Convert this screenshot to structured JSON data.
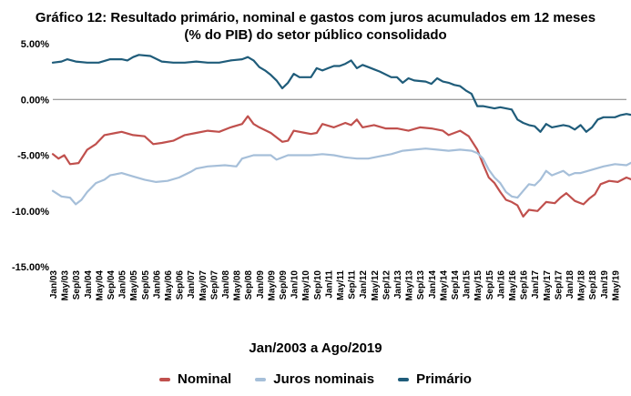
{
  "chart_data": {
    "type": "line",
    "title": "Gráfico 12: Resultado primário, nominal e gastos com juros acumulados em 12 meses",
    "subtitle": "(% do PIB) do setor público consolidado",
    "xlabel": "Jan/2003 a Ago/2019",
    "ylabel": "",
    "y_ticks": [
      "5.00%",
      "0.00%",
      "-5.00%",
      "-10.00%",
      "-15.00%"
    ],
    "y_tick_values": [
      5,
      0,
      -5,
      -10,
      -15
    ],
    "ylim": [
      -15,
      5
    ],
    "x_tick_labels": [
      "Jan/03",
      "May/03",
      "Sep/03",
      "Jan/04",
      "May/04",
      "Sep/04",
      "Jan/05",
      "May/05",
      "Sep/05",
      "Jan/06",
      "May/06",
      "Sep/06",
      "Jan/07",
      "May/07",
      "Sep/07",
      "Jan/08",
      "May/08",
      "Sep/08",
      "Jan/09",
      "May/09",
      "Sep/09",
      "Jan/10",
      "May/10",
      "Sep/10",
      "Jan/11",
      "May/11",
      "Sep/11",
      "Jan/12",
      "May/12",
      "Sep/12",
      "Jan/13",
      "May/13",
      "Sep/13",
      "Jan/14",
      "May/14",
      "Sep/14",
      "Jan/15",
      "May/15",
      "Sep/15",
      "Jan/16",
      "May/16",
      "Sep/16",
      "Jan/17",
      "May/17",
      "Sep/17",
      "Jan/18",
      "May/18",
      "Sep/18",
      "Jan/19",
      "May/19"
    ],
    "grid": false,
    "legend_position": "bottom",
    "series": [
      {
        "name": "Nominal",
        "color": "#c0504d",
        "knots": [
          [
            0,
            -4.9
          ],
          [
            2,
            -5.3
          ],
          [
            4,
            -5.0
          ],
          [
            6,
            -5.8
          ],
          [
            9,
            -5.7
          ],
          [
            12,
            -4.5
          ],
          [
            15,
            -4.0
          ],
          [
            18,
            -3.2
          ],
          [
            22,
            -3.0
          ],
          [
            24,
            -2.9
          ],
          [
            28,
            -3.2
          ],
          [
            32,
            -3.3
          ],
          [
            35,
            -4.0
          ],
          [
            38,
            -3.9
          ],
          [
            42,
            -3.7
          ],
          [
            46,
            -3.2
          ],
          [
            50,
            -3.0
          ],
          [
            54,
            -2.8
          ],
          [
            58,
            -2.9
          ],
          [
            62,
            -2.5
          ],
          [
            66,
            -2.2
          ],
          [
            68,
            -1.5
          ],
          [
            70,
            -2.2
          ],
          [
            72,
            -2.5
          ],
          [
            76,
            -3.0
          ],
          [
            80,
            -3.8
          ],
          [
            82,
            -3.7
          ],
          [
            84,
            -2.8
          ],
          [
            88,
            -3.0
          ],
          [
            90,
            -3.1
          ],
          [
            92,
            -3.0
          ],
          [
            94,
            -2.2
          ],
          [
            98,
            -2.5
          ],
          [
            102,
            -2.1
          ],
          [
            104,
            -2.3
          ],
          [
            106,
            -1.8
          ],
          [
            108,
            -2.5
          ],
          [
            112,
            -2.3
          ],
          [
            116,
            -2.6
          ],
          [
            120,
            -2.6
          ],
          [
            124,
            -2.8
          ],
          [
            128,
            -2.5
          ],
          [
            132,
            -2.6
          ],
          [
            136,
            -2.8
          ],
          [
            138,
            -3.2
          ],
          [
            142,
            -2.8
          ],
          [
            145,
            -3.3
          ],
          [
            148,
            -4.5
          ],
          [
            150,
            -5.8
          ],
          [
            152,
            -7.0
          ],
          [
            154,
            -7.5
          ],
          [
            156,
            -8.3
          ],
          [
            158,
            -9.0
          ],
          [
            160,
            -9.2
          ],
          [
            162,
            -9.5
          ],
          [
            164,
            -10.5
          ],
          [
            166,
            -9.9
          ],
          [
            169,
            -10.0
          ],
          [
            172,
            -9.2
          ],
          [
            175,
            -9.3
          ],
          [
            177,
            -8.8
          ],
          [
            179,
            -8.4
          ],
          [
            182,
            -9.1
          ],
          [
            185,
            -9.4
          ],
          [
            187,
            -8.9
          ],
          [
            189,
            -8.5
          ],
          [
            191,
            -7.6
          ],
          [
            194,
            -7.3
          ],
          [
            197,
            -7.4
          ],
          [
            200,
            -7.0
          ],
          [
            202,
            -7.2
          ],
          [
            205,
            -6.8
          ],
          [
            207,
            -7.0
          ],
          [
            210,
            -6.9
          ],
          [
            213,
            -6.8
          ],
          [
            215,
            -6.5
          ],
          [
            218,
            -6.3
          ],
          [
            220,
            -6.3
          ]
        ]
      },
      {
        "name": "Juros nominais",
        "color": "#a6bfd9",
        "knots": [
          [
            0,
            -8.2
          ],
          [
            3,
            -8.7
          ],
          [
            6,
            -8.8
          ],
          [
            8,
            -9.4
          ],
          [
            10,
            -9.0
          ],
          [
            12,
            -8.3
          ],
          [
            15,
            -7.5
          ],
          [
            18,
            -7.2
          ],
          [
            20,
            -6.8
          ],
          [
            24,
            -6.6
          ],
          [
            28,
            -6.9
          ],
          [
            32,
            -7.2
          ],
          [
            36,
            -7.4
          ],
          [
            40,
            -7.3
          ],
          [
            44,
            -7.0
          ],
          [
            48,
            -6.5
          ],
          [
            50,
            -6.2
          ],
          [
            54,
            -6.0
          ],
          [
            60,
            -5.9
          ],
          [
            64,
            -6.0
          ],
          [
            66,
            -5.3
          ],
          [
            70,
            -5.0
          ],
          [
            72,
            -5.0
          ],
          [
            76,
            -5.0
          ],
          [
            78,
            -5.4
          ],
          [
            82,
            -5.0
          ],
          [
            86,
            -5.0
          ],
          [
            90,
            -5.0
          ],
          [
            94,
            -4.9
          ],
          [
            98,
            -5.0
          ],
          [
            102,
            -5.2
          ],
          [
            106,
            -5.3
          ],
          [
            110,
            -5.3
          ],
          [
            114,
            -5.1
          ],
          [
            118,
            -4.9
          ],
          [
            122,
            -4.6
          ],
          [
            126,
            -4.5
          ],
          [
            130,
            -4.4
          ],
          [
            134,
            -4.5
          ],
          [
            138,
            -4.6
          ],
          [
            142,
            -4.5
          ],
          [
            146,
            -4.6
          ],
          [
            148,
            -4.8
          ],
          [
            150,
            -5.3
          ],
          [
            152,
            -6.3
          ],
          [
            154,
            -7.0
          ],
          [
            156,
            -7.5
          ],
          [
            158,
            -8.3
          ],
          [
            160,
            -8.7
          ],
          [
            162,
            -8.8
          ],
          [
            164,
            -8.2
          ],
          [
            166,
            -7.6
          ],
          [
            168,
            -7.7
          ],
          [
            170,
            -7.2
          ],
          [
            172,
            -6.4
          ],
          [
            174,
            -6.8
          ],
          [
            176,
            -6.6
          ],
          [
            178,
            -6.4
          ],
          [
            180,
            -6.8
          ],
          [
            182,
            -6.6
          ],
          [
            184,
            -6.6
          ],
          [
            188,
            -6.3
          ],
          [
            192,
            -6.0
          ],
          [
            196,
            -5.8
          ],
          [
            200,
            -5.9
          ],
          [
            203,
            -5.5
          ],
          [
            206,
            -5.6
          ],
          [
            209,
            -5.3
          ],
          [
            212,
            -5.4
          ],
          [
            214,
            -5.5
          ],
          [
            216,
            -5.0
          ],
          [
            220,
            -5.0
          ]
        ]
      },
      {
        "name": "Primário",
        "color": "#1f5c7a",
        "knots": [
          [
            0,
            3.3
          ],
          [
            3,
            3.4
          ],
          [
            5,
            3.6
          ],
          [
            8,
            3.4
          ],
          [
            12,
            3.3
          ],
          [
            16,
            3.3
          ],
          [
            20,
            3.6
          ],
          [
            24,
            3.6
          ],
          [
            26,
            3.5
          ],
          [
            28,
            3.8
          ],
          [
            30,
            4.0
          ],
          [
            34,
            3.9
          ],
          [
            38,
            3.4
          ],
          [
            42,
            3.3
          ],
          [
            46,
            3.3
          ],
          [
            50,
            3.4
          ],
          [
            54,
            3.3
          ],
          [
            58,
            3.3
          ],
          [
            62,
            3.5
          ],
          [
            66,
            3.6
          ],
          [
            68,
            3.8
          ],
          [
            70,
            3.5
          ],
          [
            72,
            2.9
          ],
          [
            74,
            2.6
          ],
          [
            76,
            2.2
          ],
          [
            78,
            1.7
          ],
          [
            80,
            1.0
          ],
          [
            82,
            1.5
          ],
          [
            84,
            2.3
          ],
          [
            86,
            2.0
          ],
          [
            88,
            2.0
          ],
          [
            90,
            2.0
          ],
          [
            92,
            2.8
          ],
          [
            94,
            2.6
          ],
          [
            96,
            2.8
          ],
          [
            98,
            3.0
          ],
          [
            100,
            3.0
          ],
          [
            102,
            3.2
          ],
          [
            104,
            3.5
          ],
          [
            106,
            2.8
          ],
          [
            108,
            3.1
          ],
          [
            110,
            2.9
          ],
          [
            112,
            2.7
          ],
          [
            114,
            2.5
          ],
          [
            118,
            2.0
          ],
          [
            120,
            2.0
          ],
          [
            122,
            1.5
          ],
          [
            124,
            1.9
          ],
          [
            126,
            1.7
          ],
          [
            130,
            1.6
          ],
          [
            132,
            1.4
          ],
          [
            134,
            1.9
          ],
          [
            136,
            1.6
          ],
          [
            138,
            1.5
          ],
          [
            140,
            1.3
          ],
          [
            142,
            1.2
          ],
          [
            144,
            0.8
          ],
          [
            146,
            0.5
          ],
          [
            148,
            -0.6
          ],
          [
            150,
            -0.6
          ],
          [
            152,
            -0.7
          ],
          [
            154,
            -0.8
          ],
          [
            156,
            -0.7
          ],
          [
            158,
            -0.8
          ],
          [
            160,
            -0.9
          ],
          [
            162,
            -1.8
          ],
          [
            164,
            -2.1
          ],
          [
            166,
            -2.3
          ],
          [
            168,
            -2.4
          ],
          [
            170,
            -2.9
          ],
          [
            172,
            -2.2
          ],
          [
            174,
            -2.5
          ],
          [
            176,
            -2.4
          ],
          [
            178,
            -2.3
          ],
          [
            180,
            -2.4
          ],
          [
            182,
            -2.7
          ],
          [
            184,
            -2.3
          ],
          [
            186,
            -2.9
          ],
          [
            188,
            -2.5
          ],
          [
            190,
            -1.8
          ],
          [
            192,
            -1.6
          ],
          [
            194,
            -1.6
          ],
          [
            196,
            -1.6
          ],
          [
            198,
            -1.4
          ],
          [
            200,
            -1.3
          ],
          [
            202,
            -1.4
          ],
          [
            204,
            -1.3
          ],
          [
            206,
            -1.6
          ],
          [
            208,
            -1.4
          ],
          [
            210,
            -1.3
          ],
          [
            212,
            -1.5
          ],
          [
            214,
            -1.4
          ],
          [
            216,
            -1.4
          ],
          [
            220,
            -1.4
          ]
        ]
      }
    ]
  }
}
